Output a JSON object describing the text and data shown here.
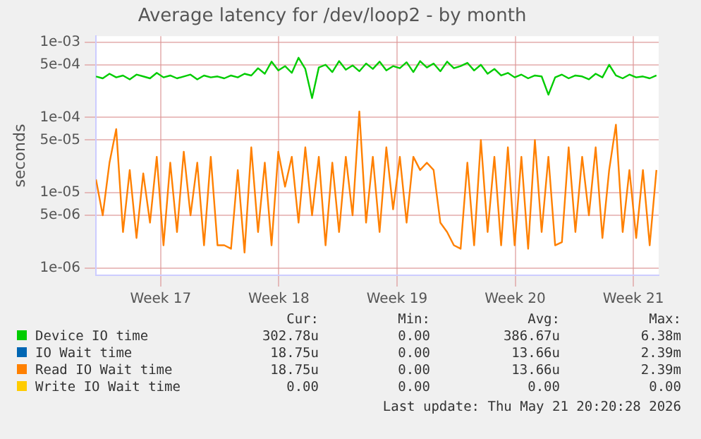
{
  "chart_data": {
    "type": "line",
    "title": "Average latency for /dev/loop2 - by month",
    "ylabel": "seconds",
    "log": "y",
    "grid": true,
    "legend": "bottom",
    "xlim": [
      "2026-04-19T16:00",
      "2026-05-23T00:00"
    ],
    "xticks": [
      {
        "value": "2026-04-23T12:00",
        "label": "Week 17"
      },
      {
        "value": "2026-04-30T12:00",
        "label": "Week 18"
      },
      {
        "value": "2026-05-07T12:00",
        "label": "Week 19"
      },
      {
        "value": "2026-05-14T12:00",
        "label": "Week 20"
      },
      {
        "value": "2026-05-21T12:00",
        "label": "Week 21"
      }
    ],
    "ylim": [
      8e-07,
      0.0012
    ],
    "yticks": [
      {
        "value": 1e-06,
        "label": "1e-06"
      },
      {
        "value": 5e-06,
        "label": "5e-06"
      },
      {
        "value": 1e-05,
        "label": "1e-05"
      },
      {
        "value": 5e-05,
        "label": "5e-05"
      },
      {
        "value": 0.0001,
        "label": "1e-04"
      },
      {
        "value": 0.0005,
        "label": "5e-04"
      },
      {
        "value": 0.001,
        "label": "1e-03"
      }
    ],
    "x": [
      "2026-04-19T16:00",
      "2026-04-20T01:36",
      "2026-04-20T11:12",
      "2026-04-20T20:48",
      "2026-04-21T06:24",
      "2026-04-21T16:00",
      "2026-04-22T01:36",
      "2026-04-22T11:12",
      "2026-04-22T20:48",
      "2026-04-23T06:24",
      "2026-04-23T16:00",
      "2026-04-24T01:36",
      "2026-04-24T11:12",
      "2026-04-24T20:48",
      "2026-04-25T06:24",
      "2026-04-25T16:00",
      "2026-04-26T01:36",
      "2026-04-26T11:12",
      "2026-04-26T20:48",
      "2026-04-27T06:24",
      "2026-04-27T16:00",
      "2026-04-28T01:36",
      "2026-04-28T11:12",
      "2026-04-28T20:48",
      "2026-04-29T06:24",
      "2026-04-29T16:00",
      "2026-04-30T01:36",
      "2026-04-30T11:12",
      "2026-04-30T20:48",
      "2026-05-01T06:24",
      "2026-05-01T16:00",
      "2026-05-02T01:36",
      "2026-05-02T11:12",
      "2026-05-02T20:48",
      "2026-05-03T06:24",
      "2026-05-03T16:00",
      "2026-05-04T01:36",
      "2026-05-04T11:12",
      "2026-05-04T20:48",
      "2026-05-05T06:24",
      "2026-05-05T16:00",
      "2026-05-06T01:36",
      "2026-05-06T11:12",
      "2026-05-06T20:48",
      "2026-05-07T06:24",
      "2026-05-07T16:00",
      "2026-05-08T01:36",
      "2026-05-08T11:12",
      "2026-05-08T20:48",
      "2026-05-09T06:24",
      "2026-05-09T16:00",
      "2026-05-10T01:36",
      "2026-05-10T11:12",
      "2026-05-10T20:48",
      "2026-05-11T06:24",
      "2026-05-11T16:00",
      "2026-05-12T01:36",
      "2026-05-12T11:12",
      "2026-05-12T20:48",
      "2026-05-13T06:24",
      "2026-05-13T16:00",
      "2026-05-14T01:36",
      "2026-05-14T11:12",
      "2026-05-14T20:48",
      "2026-05-15T06:24",
      "2026-05-15T16:00",
      "2026-05-16T01:36",
      "2026-05-16T11:12",
      "2026-05-16T20:48",
      "2026-05-17T06:24",
      "2026-05-17T16:00",
      "2026-05-18T01:36",
      "2026-05-18T11:12",
      "2026-05-18T20:48",
      "2026-05-19T06:24",
      "2026-05-19T16:00",
      "2026-05-20T01:36",
      "2026-05-20T11:12",
      "2026-05-20T20:48",
      "2026-05-21T06:24",
      "2026-05-21T16:00",
      "2026-05-22T01:36",
      "2026-05-22T11:12",
      "2026-05-22T20:48"
    ],
    "series": [
      {
        "name": "Device IO time",
        "color": "#00cc00",
        "values": [
          0.00035,
          0.00033,
          0.00038,
          0.00034,
          0.00036,
          0.00032,
          0.00037,
          0.00035,
          0.00033,
          0.00039,
          0.00034,
          0.00036,
          0.00033,
          0.00035,
          0.00037,
          0.00032,
          0.00036,
          0.00034,
          0.00035,
          0.00033,
          0.00036,
          0.00034,
          0.00038,
          0.00036,
          0.00045,
          0.00038,
          0.00055,
          0.00042,
          0.00048,
          0.00039,
          0.00062,
          0.00044,
          0.00018,
          0.00046,
          0.0005,
          0.0004,
          0.00056,
          0.00043,
          0.00049,
          0.00041,
          0.00052,
          0.00044,
          0.00055,
          0.00042,
          0.00048,
          0.00045,
          0.00054,
          0.0004,
          0.00056,
          0.00046,
          0.00052,
          0.00041,
          0.00055,
          0.00045,
          0.00048,
          0.00053,
          0.00042,
          0.0005,
          0.00038,
          0.00044,
          0.00036,
          0.00039,
          0.00034,
          0.00037,
          0.00033,
          0.00036,
          0.00035,
          0.0002,
          0.00034,
          0.00037,
          0.00033,
          0.00036,
          0.00035,
          0.00032,
          0.00038,
          0.00034,
          0.0005,
          0.00036,
          0.00033,
          0.00037,
          0.00034,
          0.00035,
          0.00033,
          0.00036
        ]
      },
      {
        "name": "IO Wait time",
        "color": "#0066b3",
        "values": [
          null,
          null,
          null,
          null,
          null,
          null,
          null,
          null,
          null,
          null,
          null,
          null,
          null,
          null,
          null,
          null,
          null,
          null,
          null,
          null,
          null,
          null,
          null,
          null,
          null,
          null,
          null,
          null,
          null,
          null,
          null,
          null,
          null,
          null,
          null,
          null,
          null,
          null,
          null,
          null,
          null,
          null,
          null,
          null,
          null,
          null,
          null,
          null,
          null,
          null,
          null,
          null,
          null,
          null,
          null,
          null,
          null,
          null,
          null,
          null,
          null,
          null,
          null,
          null,
          null,
          null,
          null,
          null,
          null,
          null,
          null,
          null,
          null,
          null,
          null,
          null,
          null,
          null,
          null,
          null,
          null,
          null,
          null,
          null
        ]
      },
      {
        "name": "Read IO Wait time",
        "color": "#ff8000",
        "values": [
          1.5e-05,
          5e-06,
          2.5e-05,
          7e-05,
          3e-06,
          2e-05,
          2.5e-06,
          1.8e-05,
          4e-06,
          3e-05,
          2e-06,
          2.5e-05,
          3e-06,
          3.5e-05,
          5e-06,
          2.5e-05,
          2e-06,
          3e-05,
          2e-06,
          2e-06,
          1.8e-06,
          2e-05,
          1.6e-06,
          4e-05,
          3e-06,
          2.5e-05,
          2e-06,
          3.5e-05,
          1.2e-05,
          3e-05,
          4e-06,
          4e-05,
          5e-06,
          3e-05,
          2e-06,
          2.5e-05,
          3e-06,
          3e-05,
          5e-06,
          0.00012,
          4e-06,
          3e-05,
          3e-06,
          4e-05,
          6e-06,
          3e-05,
          4e-06,
          3e-05,
          2e-05,
          2.5e-05,
          2e-05,
          4e-06,
          3e-06,
          2e-06,
          1.8e-06,
          2.5e-05,
          2e-06,
          5e-05,
          3e-06,
          3e-05,
          2e-06,
          4e-05,
          2e-06,
          3e-05,
          1.8e-06,
          5e-05,
          3e-06,
          3e-05,
          2e-06,
          2.2e-06,
          4e-05,
          3e-06,
          3e-05,
          5e-06,
          4e-05,
          2.5e-06,
          2e-05,
          8e-05,
          3e-06,
          2e-05,
          2.5e-06,
          2e-05,
          2e-06,
          2e-05
        ]
      },
      {
        "name": "Write IO Wait time",
        "color": "#ffcc00",
        "values": [
          null,
          null,
          null,
          null,
          null,
          null,
          null,
          null,
          null,
          null,
          null,
          null,
          null,
          null,
          null,
          null,
          null,
          null,
          null,
          null,
          null,
          null,
          null,
          null,
          null,
          null,
          null,
          null,
          null,
          null,
          null,
          null,
          null,
          null,
          null,
          null,
          null,
          null,
          null,
          null,
          null,
          null,
          null,
          null,
          null,
          null,
          null,
          null,
          null,
          null,
          null,
          null,
          null,
          null,
          null,
          null,
          null,
          null,
          null,
          null,
          null,
          null,
          null,
          null,
          null,
          null,
          null,
          null,
          null,
          null,
          null,
          null,
          null,
          null,
          null,
          null,
          null,
          null,
          null,
          null,
          null,
          null,
          null,
          null
        ]
      }
    ],
    "annotations": [
      "Cur:",
      "Min:",
      "Avg:",
      "Max:",
      "302.78u",
      "0.00",
      "386.67u",
      "6.38m",
      "18.75u",
      "0.00",
      "13.66u",
      "2.39m",
      "18.75u",
      "0.00",
      "13.66u",
      "2.39m",
      "0.00",
      "0.00",
      "0.00",
      "0.00",
      "Last update: Thu May 21 20:20:28 2026"
    ]
  }
}
